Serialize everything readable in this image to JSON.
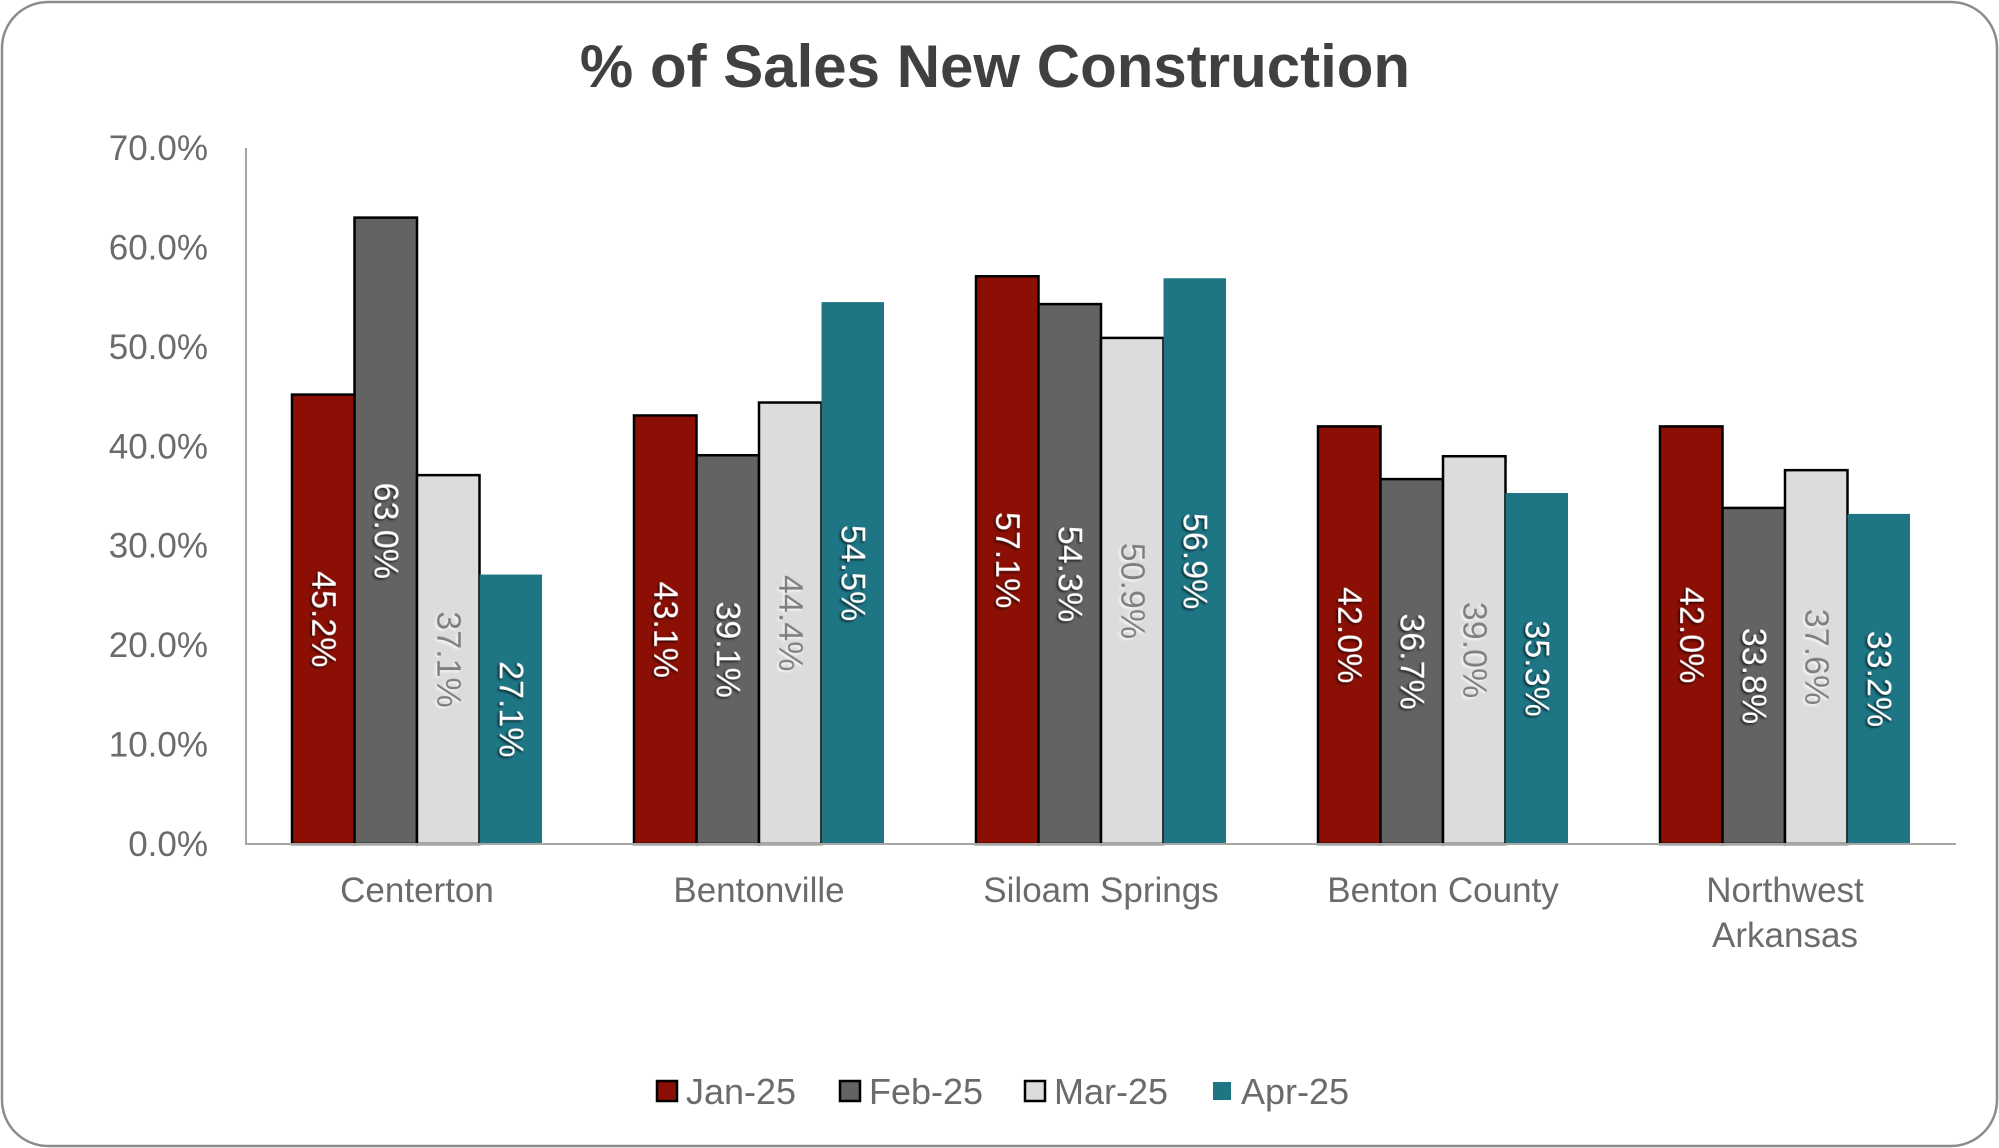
{
  "chart_data": {
    "type": "bar",
    "title": "% of Sales New Construction",
    "xlabel": "",
    "ylabel": "",
    "ylim": [
      0,
      70
    ],
    "yticks": [
      0,
      10,
      20,
      30,
      40,
      50,
      60,
      70
    ],
    "ytick_labels": [
      "0.0%",
      "10.0%",
      "20.0%",
      "30.0%",
      "40.0%",
      "50.0%",
      "60.0%",
      "70.0%"
    ],
    "grid": false,
    "legend_position": "bottom",
    "categories": [
      [
        "Centerton"
      ],
      [
        "Bentonville"
      ],
      [
        "Siloam Springs"
      ],
      [
        "Benton County"
      ],
      [
        "Northwest",
        "Arkansas"
      ]
    ],
    "category_names": [
      "Centerton",
      "Bentonville",
      "Siloam Springs",
      "Benton County",
      "Northwest Arkansas"
    ],
    "series": [
      {
        "name": "Jan-25",
        "color": "#8b0f05",
        "border": "#000000",
        "label_color": "#ffffff",
        "values": [
          45.2,
          43.1,
          57.1,
          42.0,
          42.0
        ],
        "labels": [
          "45.2%",
          "43.1%",
          "57.1%",
          "42.0%",
          "42.0%"
        ]
      },
      {
        "name": "Feb-25",
        "color": "#636363",
        "border": "#000000",
        "label_color": "#ffffff",
        "values": [
          63.0,
          39.1,
          54.3,
          36.7,
          33.8
        ],
        "labels": [
          "63.0%",
          "39.1%",
          "54.3%",
          "36.7%",
          "33.8%"
        ]
      },
      {
        "name": "Mar-25",
        "color": "#dcdcdc",
        "border": "#000000",
        "label_color": "#7f7f7f",
        "values": [
          37.1,
          44.4,
          50.9,
          39.0,
          37.6
        ],
        "labels": [
          "37.1%",
          "44.4%",
          "50.9%",
          "39.0%",
          "37.6%"
        ]
      },
      {
        "name": "Apr-25",
        "color": "#1e7584",
        "border": "none",
        "label_color": "#ffffff",
        "values": [
          27.1,
          54.5,
          56.9,
          35.3,
          33.2
        ],
        "labels": [
          "27.1%",
          "54.5%",
          "56.9%",
          "35.3%",
          "33.2%"
        ]
      }
    ]
  }
}
